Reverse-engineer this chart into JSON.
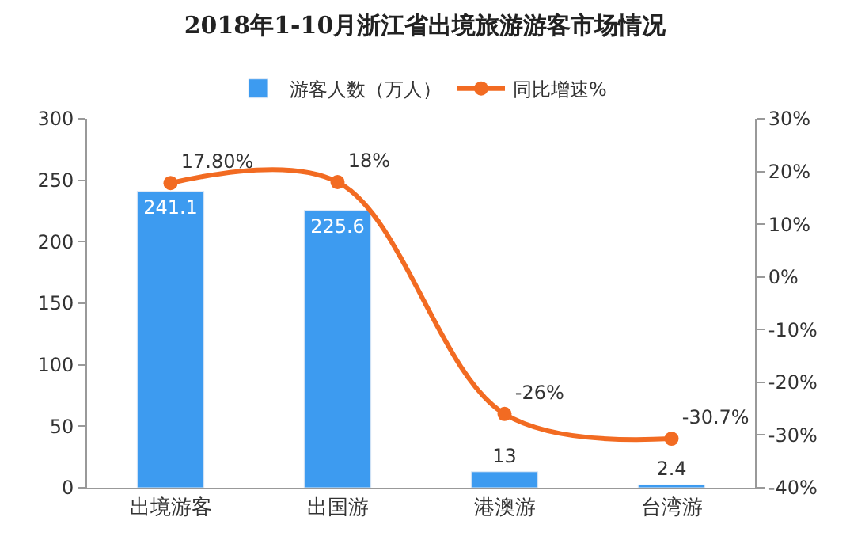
{
  "chart_data": {
    "type": "bar",
    "title": "2018年1-10月浙江省出境旅游游客市场情况",
    "categories": [
      "出境游客",
      "出国游",
      "港澳游",
      "台湾游"
    ],
    "series": [
      {
        "name": "游客人数（万人）",
        "color": "#3d9bf0",
        "values": [
          241.1,
          225.6,
          13,
          2.4
        ],
        "value_labels": [
          "241.1",
          "225.6",
          "13",
          "2.4"
        ]
      },
      {
        "name": "同比增速%",
        "type": "line",
        "axis": "y2",
        "color": "#f26b22",
        "values": [
          17.8,
          18,
          -26,
          -30.7
        ],
        "value_labels": [
          "17.80%",
          "18%",
          "-26%",
          "-30.7%"
        ],
        "marker": "circle"
      }
    ],
    "ylim": [
      0,
      300
    ],
    "yticks": [
      0,
      50,
      100,
      150,
      200,
      250,
      300
    ],
    "y2lim": [
      -40,
      30
    ],
    "y2ticks": [
      {
        "value": -40,
        "label": "-40%"
      },
      {
        "value": -30,
        "label": "-30%"
      },
      {
        "value": -20,
        "label": "-20%"
      },
      {
        "value": -10,
        "label": "-10%"
      },
      {
        "value": 0,
        "label": "0%"
      },
      {
        "value": 10,
        "label": "10%"
      },
      {
        "value": 20,
        "label": "20%"
      },
      {
        "value": 30,
        "label": "30%"
      }
    ],
    "legend": "top"
  }
}
